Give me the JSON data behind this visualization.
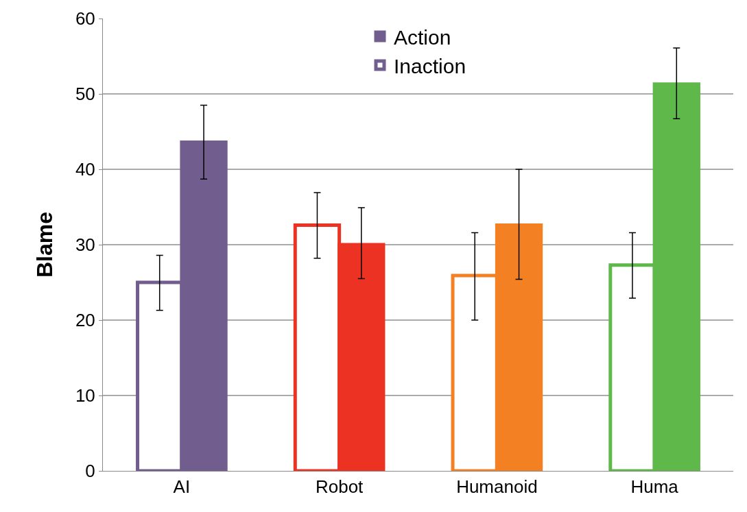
{
  "chart_data": {
    "type": "bar",
    "ylabel": "Blame",
    "categories": [
      "AI",
      "Robot",
      "Humanoid",
      "Huma"
    ],
    "series": [
      {
        "name": "Inaction",
        "colors": [
          "#ffffff",
          "#ffffff",
          "#ffffff",
          "#ffffff"
        ],
        "values": [
          25,
          32.6,
          25.9,
          27.3
        ],
        "errors": [
          [
            21.3,
            28.6
          ],
          [
            28.2,
            36.9
          ],
          [
            20,
            31.6
          ],
          [
            22.9,
            31.6
          ]
        ]
      },
      {
        "name": "Action",
        "colors": [
          "#725e8e",
          "#ec3323",
          "#f38124",
          "#5eb84a"
        ],
        "values": [
          43.6,
          30,
          32.6,
          51.3
        ],
        "errors": [
          [
            38.7,
            48.5
          ],
          [
            25.5,
            34.9
          ],
          [
            25.4,
            40
          ],
          [
            46.7,
            56.1
          ]
        ]
      }
    ],
    "ylim": [
      0,
      60
    ],
    "yticks": [
      0,
      10,
      20,
      30,
      40,
      50,
      60
    ],
    "grid": "y",
    "legend": "top"
  }
}
